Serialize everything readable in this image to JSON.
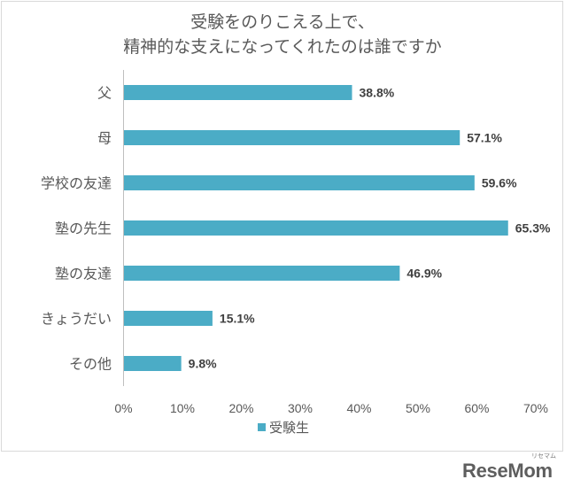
{
  "chart_data": {
    "type": "bar",
    "horizontal": true,
    "title_lines": [
      "受験をのりこえる上で、",
      "精神的な支えになってくれたのは誰ですか"
    ],
    "categories": [
      "父",
      "母",
      "学校の友達",
      "塾の先生",
      "塾の友達",
      "きょうだい",
      "その他"
    ],
    "series": [
      {
        "name": "受験生",
        "values": [
          38.8,
          57.1,
          59.6,
          65.3,
          46.9,
          15.1,
          9.8
        ],
        "data_labels": [
          "38.8%",
          "57.1%",
          "59.6%",
          "65.3%",
          "46.9%",
          "15.1%",
          "9.8%"
        ],
        "color": "#4bacc6"
      }
    ],
    "xlim": [
      0,
      70
    ],
    "x_ticks": [
      0,
      10,
      20,
      30,
      40,
      50,
      60,
      70
    ],
    "x_tick_labels": [
      "0%",
      "10%",
      "20%",
      "30%",
      "40%",
      "50%",
      "60%",
      "70%"
    ],
    "grid": false,
    "legend": {
      "position": "bottom"
    }
  },
  "branding": {
    "logo_text": "ReseMom",
    "logo_kana": "リセマム"
  }
}
